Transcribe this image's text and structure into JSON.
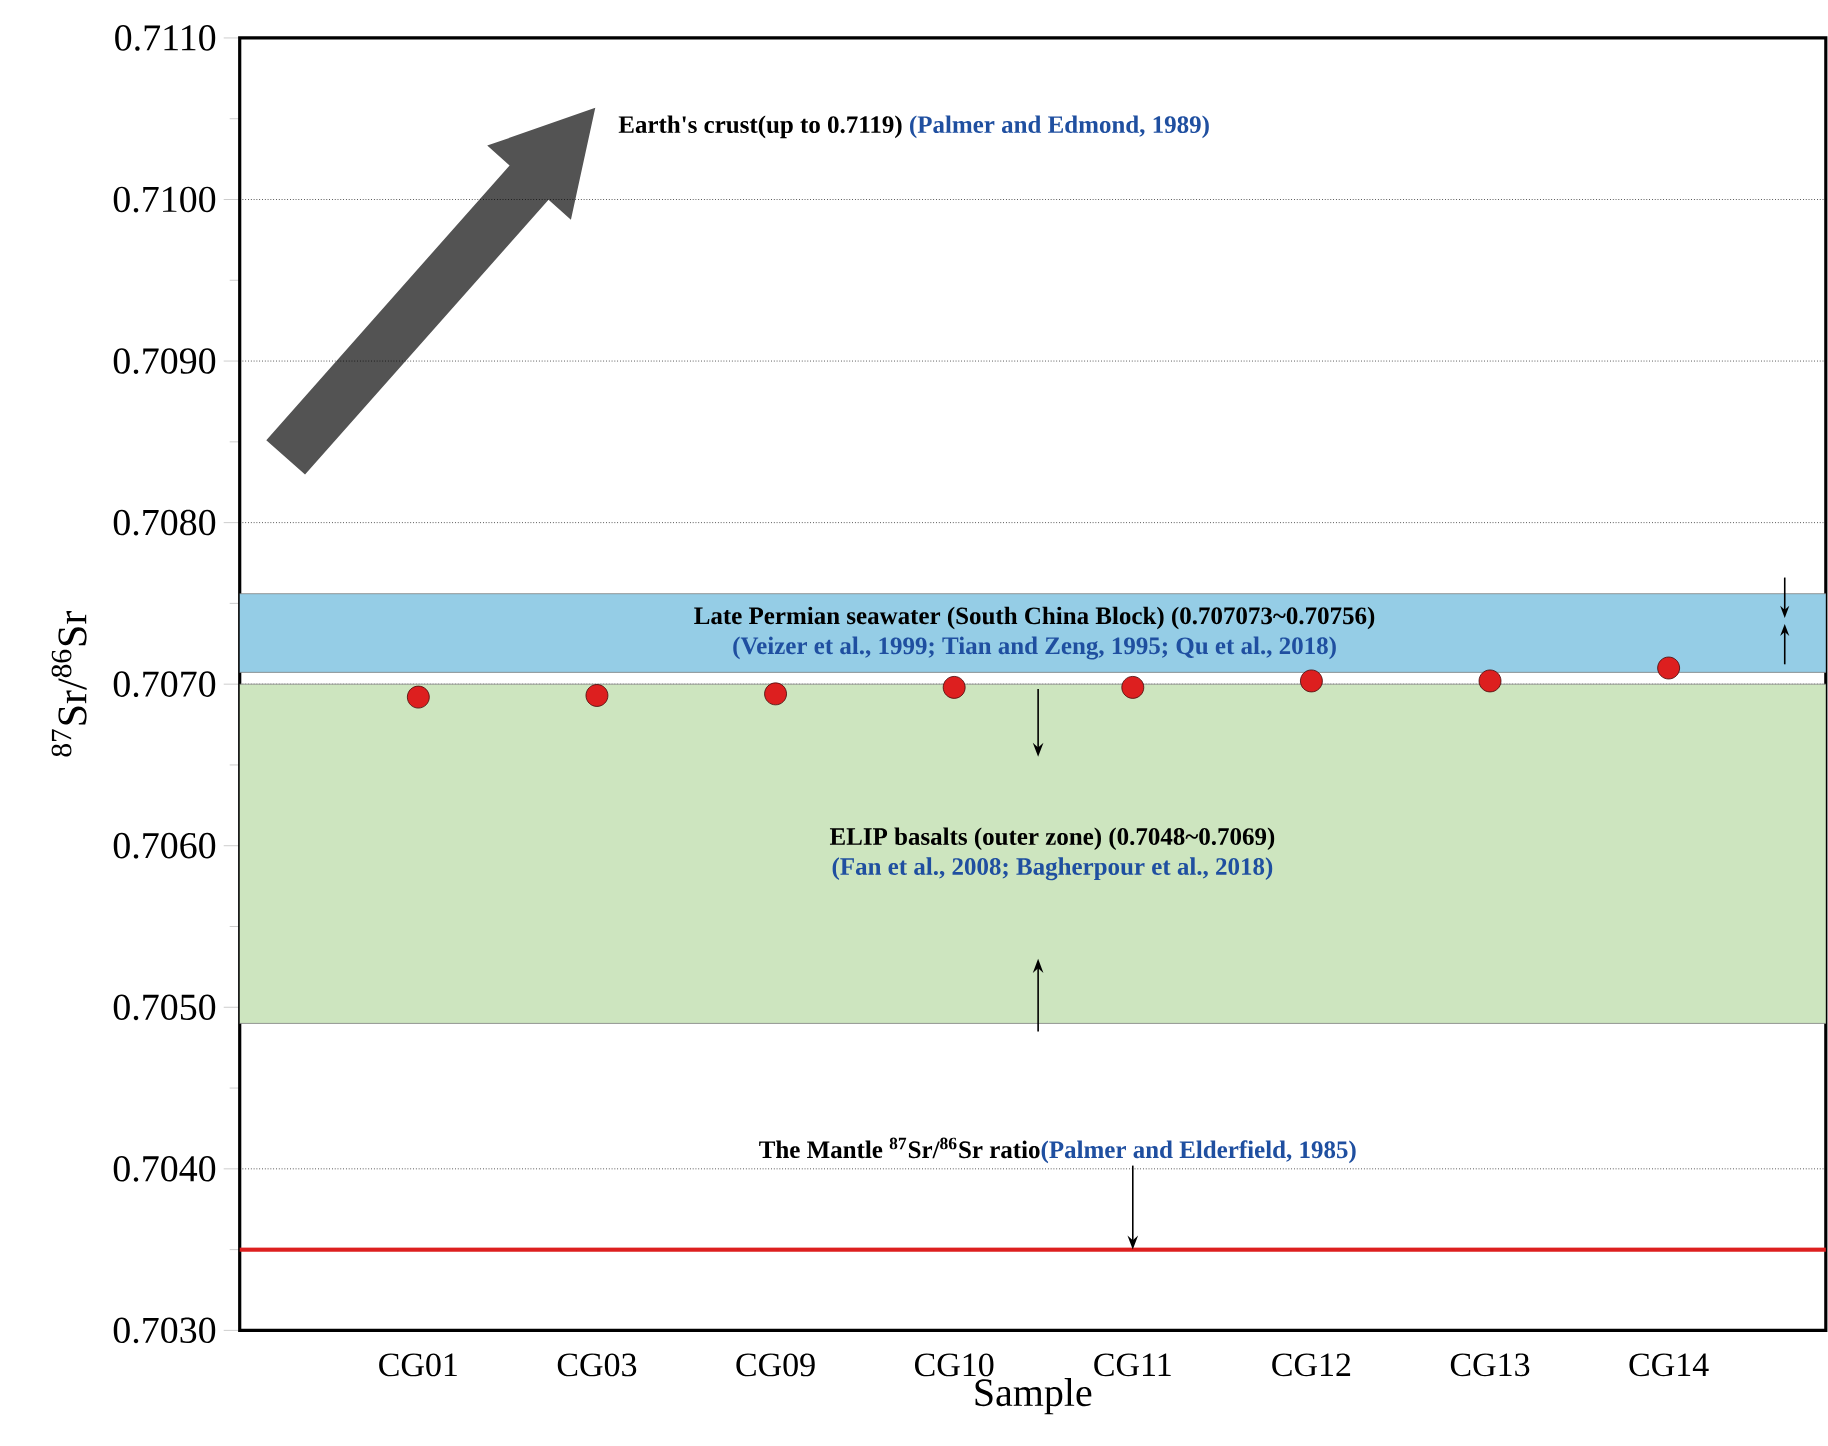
{
  "chart_data": {
    "type": "scatter",
    "xlabel": "Sample",
    "ylabel": "$^{87}$Sr/$^{86}$Sr",
    "categories": [
      "CG01",
      "CG03",
      "CG09",
      "CG10",
      "CG11",
      "CG12",
      "CG13",
      "CG14"
    ],
    "series": [
      {
        "color": "#dd1f1f",
        "values": [
          0.70692,
          0.70693,
          0.70694,
          0.70698,
          0.70698,
          0.70702,
          0.70702,
          0.7071
        ]
      }
    ],
    "marker": "circle",
    "ylim": [
      0.703,
      0.711
    ],
    "yticks": [
      {
        "value": 0.703,
        "label": "0.7030"
      },
      {
        "value": 0.704,
        "label": "0.7040"
      },
      {
        "value": 0.705,
        "label": "0.7050"
      },
      {
        "value": 0.706,
        "label": "0.7060"
      },
      {
        "value": 0.707,
        "label": "0.7070"
      },
      {
        "value": 0.708,
        "label": "0.7080"
      },
      {
        "value": 0.709,
        "label": "0.7090"
      },
      {
        "value": 0.71,
        "label": "0.7100"
      },
      {
        "value": 0.711,
        "label": "0.7110"
      }
    ],
    "grid": "y",
    "bands": [
      {
        "axis": "y",
        "from": 0.707073,
        "to": 0.70756,
        "label": "Late Permian  seawater (South China Block) (0.707073~0.70756)",
        "color": "#95cde6"
      },
      {
        "axis": "y",
        "from": 0.7049,
        "to": 0.707,
        "label": "ELIP basalts (outer zone) (0.7048~0.7069)",
        "color": "#cde5bf"
      }
    ],
    "ref_lines": [
      {
        "axis": "y",
        "value": 0.7035,
        "color": "#dd1f1f",
        "line_style": "solid"
      }
    ],
    "annotations": [
      "Earth's crust(up to 0.7119)",
      "(Palmer and Edmond, 1989)",
      "(Veizer et al., 1999; Tian and Zeng, 1995; Qu et al., 2018)",
      "(Fan et al., 2008;  Bagherpour et al., 2018)",
      {
        "text": "(Palmer and Elderfield, 1985)",
        "x": "CG11",
        "y": 0.7035
      },
      "The Mantle $^{87}$Sr/$^{86}$Sr ratio"
    ]
  }
}
